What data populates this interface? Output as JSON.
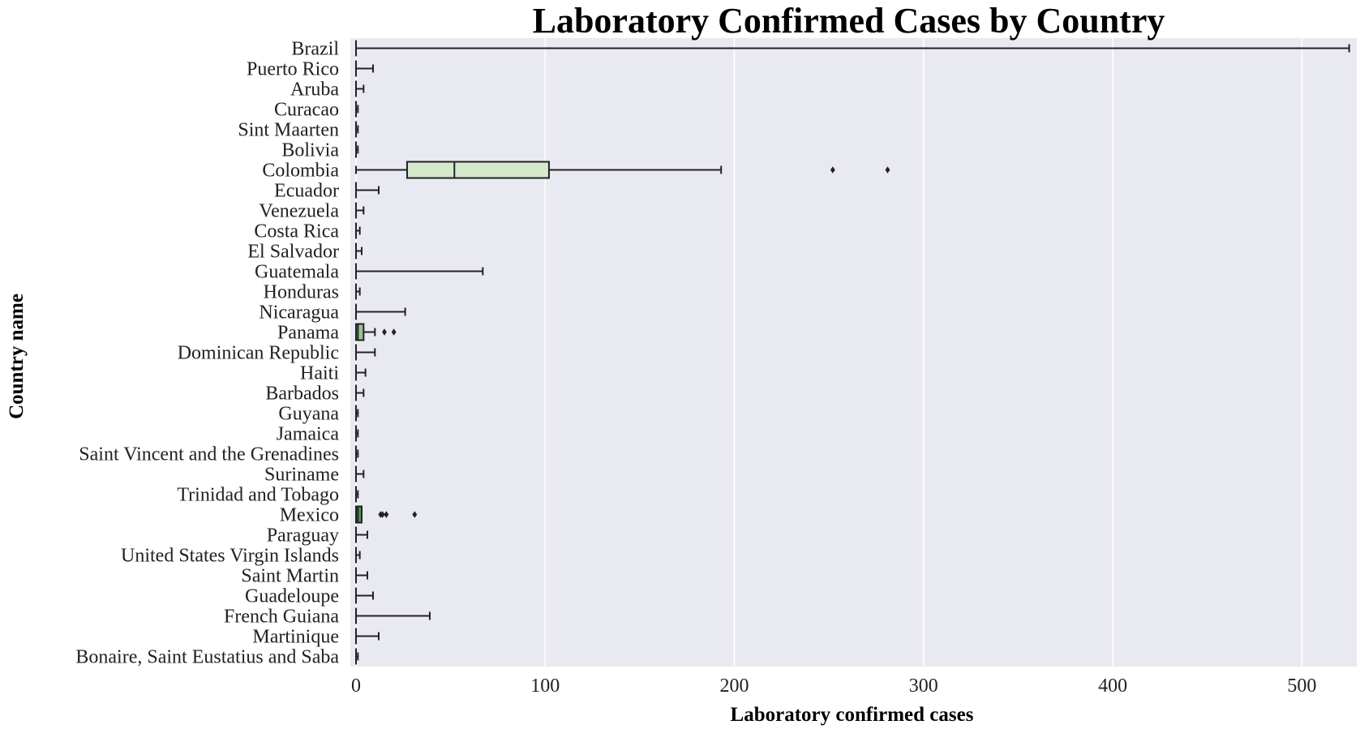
{
  "chart_data": {
    "type": "box",
    "title": "Laboratory Confirmed Cases by Country",
    "xlabel": "Laboratory confirmed cases",
    "ylabel": "Country name",
    "orientation": "horizontal",
    "xlim": [
      -3,
      529
    ],
    "xticks": [
      0,
      100,
      200,
      300,
      400,
      500
    ],
    "grid": true,
    "legend": "none",
    "colors": {
      "background": "#e9e9f1",
      "grid": "#ffffff",
      "line": "#222222"
    },
    "series": [
      {
        "category": "Brazil",
        "min": 0,
        "q1": 0,
        "median": 0,
        "q3": 0,
        "max": 525,
        "outliers": [],
        "color": "#d4e9cc"
      },
      {
        "category": "Puerto Rico",
        "min": 0,
        "q1": 0,
        "median": 0,
        "q3": 0,
        "max": 9,
        "outliers": [],
        "color": "#d4e9cc"
      },
      {
        "category": "Aruba",
        "min": 0,
        "q1": 0,
        "median": 0,
        "q3": 0,
        "max": 4,
        "outliers": [],
        "color": "#d4e9cc"
      },
      {
        "category": "Curacao",
        "min": 0,
        "q1": 0,
        "median": 0,
        "q3": 0,
        "max": 1,
        "outliers": [],
        "color": "#d4e9cc"
      },
      {
        "category": "Sint Maarten",
        "min": 0,
        "q1": 0,
        "median": 0,
        "q3": 0,
        "max": 1,
        "outliers": [],
        "color": "#d4e9cc"
      },
      {
        "category": "Bolivia",
        "min": 0,
        "q1": 0,
        "median": 0,
        "q3": 0,
        "max": 1,
        "outliers": [],
        "color": "#d4e9cc"
      },
      {
        "category": "Colombia",
        "min": 0,
        "q1": 27,
        "median": 52,
        "q3": 102,
        "max": 193,
        "outliers": [
          252,
          281
        ],
        "color": "#d4e9cc"
      },
      {
        "category": "Ecuador",
        "min": 0,
        "q1": 0,
        "median": 0,
        "q3": 0,
        "max": 12,
        "outliers": [],
        "color": "#d4e9cc"
      },
      {
        "category": "Venezuela",
        "min": 0,
        "q1": 0,
        "median": 0,
        "q3": 0,
        "max": 4,
        "outliers": [],
        "color": "#d4e9cc"
      },
      {
        "category": "Costa Rica",
        "min": 0,
        "q1": 0,
        "median": 0,
        "q3": 0,
        "max": 2,
        "outliers": [],
        "color": "#d4e9cc"
      },
      {
        "category": "El Salvador",
        "min": 0,
        "q1": 0,
        "median": 0,
        "q3": 0,
        "max": 3,
        "outliers": [],
        "color": "#d4e9cc"
      },
      {
        "category": "Guatemala",
        "min": 0,
        "q1": 0,
        "median": 0,
        "q3": 0,
        "max": 67,
        "outliers": [],
        "color": "#d4e9cc"
      },
      {
        "category": "Honduras",
        "min": 0,
        "q1": 0,
        "median": 0,
        "q3": 0,
        "max": 2,
        "outliers": [],
        "color": "#d4e9cc"
      },
      {
        "category": "Nicaragua",
        "min": 0,
        "q1": 0,
        "median": 0,
        "q3": 0,
        "max": 26,
        "outliers": [],
        "color": "#d4e9cc"
      },
      {
        "category": "Panama",
        "min": 0,
        "q1": 0,
        "median": 1,
        "q3": 4,
        "max": 10,
        "outliers": [
          15,
          20
        ],
        "color": "#97c593"
      },
      {
        "category": "Dominican Republic",
        "min": 0,
        "q1": 0,
        "median": 0,
        "q3": 0,
        "max": 10,
        "outliers": [],
        "color": "#d4e9cc"
      },
      {
        "category": "Haiti",
        "min": 0,
        "q1": 0,
        "median": 0,
        "q3": 0,
        "max": 5,
        "outliers": [],
        "color": "#d4e9cc"
      },
      {
        "category": "Barbados",
        "min": 0,
        "q1": 0,
        "median": 0,
        "q3": 0,
        "max": 4,
        "outliers": [],
        "color": "#d4e9cc"
      },
      {
        "category": "Guyana",
        "min": 0,
        "q1": 0,
        "median": 0,
        "q3": 0,
        "max": 1,
        "outliers": [],
        "color": "#d4e9cc"
      },
      {
        "category": "Jamaica",
        "min": 0,
        "q1": 0,
        "median": 0,
        "q3": 0,
        "max": 1,
        "outliers": [],
        "color": "#d4e9cc"
      },
      {
        "category": "Saint Vincent and the Grenadines",
        "min": 0,
        "q1": 0,
        "median": 0,
        "q3": 0,
        "max": 1,
        "outliers": [],
        "color": "#d4e9cc"
      },
      {
        "category": "Suriname",
        "min": 0,
        "q1": 0,
        "median": 0,
        "q3": 0,
        "max": 4,
        "outliers": [],
        "color": "#d4e9cc"
      },
      {
        "category": "Trinidad and Tobago",
        "min": 0,
        "q1": 0,
        "median": 0,
        "q3": 0,
        "max": 1,
        "outliers": [],
        "color": "#d4e9cc"
      },
      {
        "category": "Mexico",
        "min": 0,
        "q1": 0,
        "median": 1,
        "q3": 3,
        "max": 3,
        "outliers": [
          13,
          14,
          16,
          31
        ],
        "color": "#4f9a5b"
      },
      {
        "category": "Paraguay",
        "min": 0,
        "q1": 0,
        "median": 0,
        "q3": 0,
        "max": 6,
        "outliers": [],
        "color": "#d4e9cc"
      },
      {
        "category": "United States Virgin Islands",
        "min": 0,
        "q1": 0,
        "median": 0,
        "q3": 0,
        "max": 2,
        "outliers": [],
        "color": "#d4e9cc"
      },
      {
        "category": "Saint Martin",
        "min": 0,
        "q1": 0,
        "median": 0,
        "q3": 0,
        "max": 6,
        "outliers": [],
        "color": "#d4e9cc"
      },
      {
        "category": "Guadeloupe",
        "min": 0,
        "q1": 0,
        "median": 0,
        "q3": 0,
        "max": 9,
        "outliers": [],
        "color": "#d4e9cc"
      },
      {
        "category": "French Guiana",
        "min": 0,
        "q1": 0,
        "median": 0,
        "q3": 0,
        "max": 39,
        "outliers": [],
        "color": "#d4e9cc"
      },
      {
        "category": "Martinique",
        "min": 0,
        "q1": 0,
        "median": 0,
        "q3": 0,
        "max": 12,
        "outliers": [],
        "color": "#d4e9cc"
      },
      {
        "category": "Bonaire, Saint Eustatius and Saba",
        "min": 0,
        "q1": 0,
        "median": 0,
        "q3": 0,
        "max": 1,
        "outliers": [],
        "color": "#d4e9cc"
      }
    ]
  }
}
